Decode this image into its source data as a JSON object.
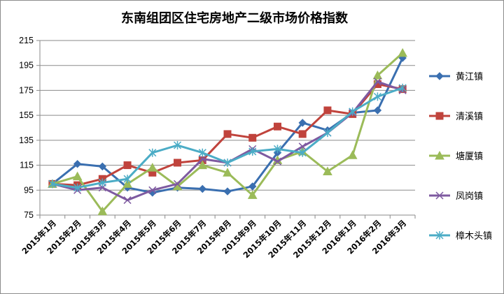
{
  "chart_data": {
    "type": "line",
    "title": "东南组团区住宅房地产二级市场价格指数",
    "xlabel": "",
    "ylabel": "",
    "ylim": [
      75,
      215
    ],
    "yticks": [
      75,
      95,
      115,
      135,
      155,
      175,
      195,
      215
    ],
    "grid": true,
    "legend": "right",
    "categories": [
      "2015年1月",
      "2015年2月",
      "2015年3月",
      "2015年4月",
      "2015年5月",
      "2015年6月",
      "2015年7月",
      "2015年8月",
      "2015年9月",
      "2015年10月",
      "2015年11月",
      "2015年12月",
      "2016年1月",
      "2016年2月",
      "2016年3月"
    ],
    "series": [
      {
        "name": "黄江镇",
        "color": "#3a6fb0",
        "marker": "diamond",
        "values": [
          100,
          116,
          114,
          97,
          93,
          97,
          96,
          94,
          98,
          125,
          149,
          143,
          157,
          159,
          201
        ]
      },
      {
        "name": "清溪镇",
        "color": "#c0433c",
        "marker": "square",
        "values": [
          100,
          99,
          104,
          115,
          109,
          117,
          119,
          140,
          137,
          146,
          140,
          159,
          156,
          180,
          176
        ]
      },
      {
        "name": "塘厦镇",
        "color": "#9bbb59",
        "marker": "triangle",
        "values": [
          100,
          106,
          78,
          100,
          113,
          98,
          115,
          109,
          91,
          119,
          126,
          110,
          123,
          187,
          205
        ]
      },
      {
        "name": "凤岗镇",
        "color": "#7e5aa0",
        "marker": "x",
        "values": [
          100,
          95,
          97,
          87,
          95,
          100,
          120,
          117,
          128,
          118,
          130,
          141,
          157,
          182,
          175
        ]
      },
      {
        "name": "樟木头镇",
        "color": "#4bacc6",
        "marker": "asterisk",
        "values": [
          100,
          97,
          101,
          104,
          125,
          131,
          125,
          117,
          126,
          128,
          125,
          141,
          158,
          170,
          177
        ]
      }
    ]
  }
}
